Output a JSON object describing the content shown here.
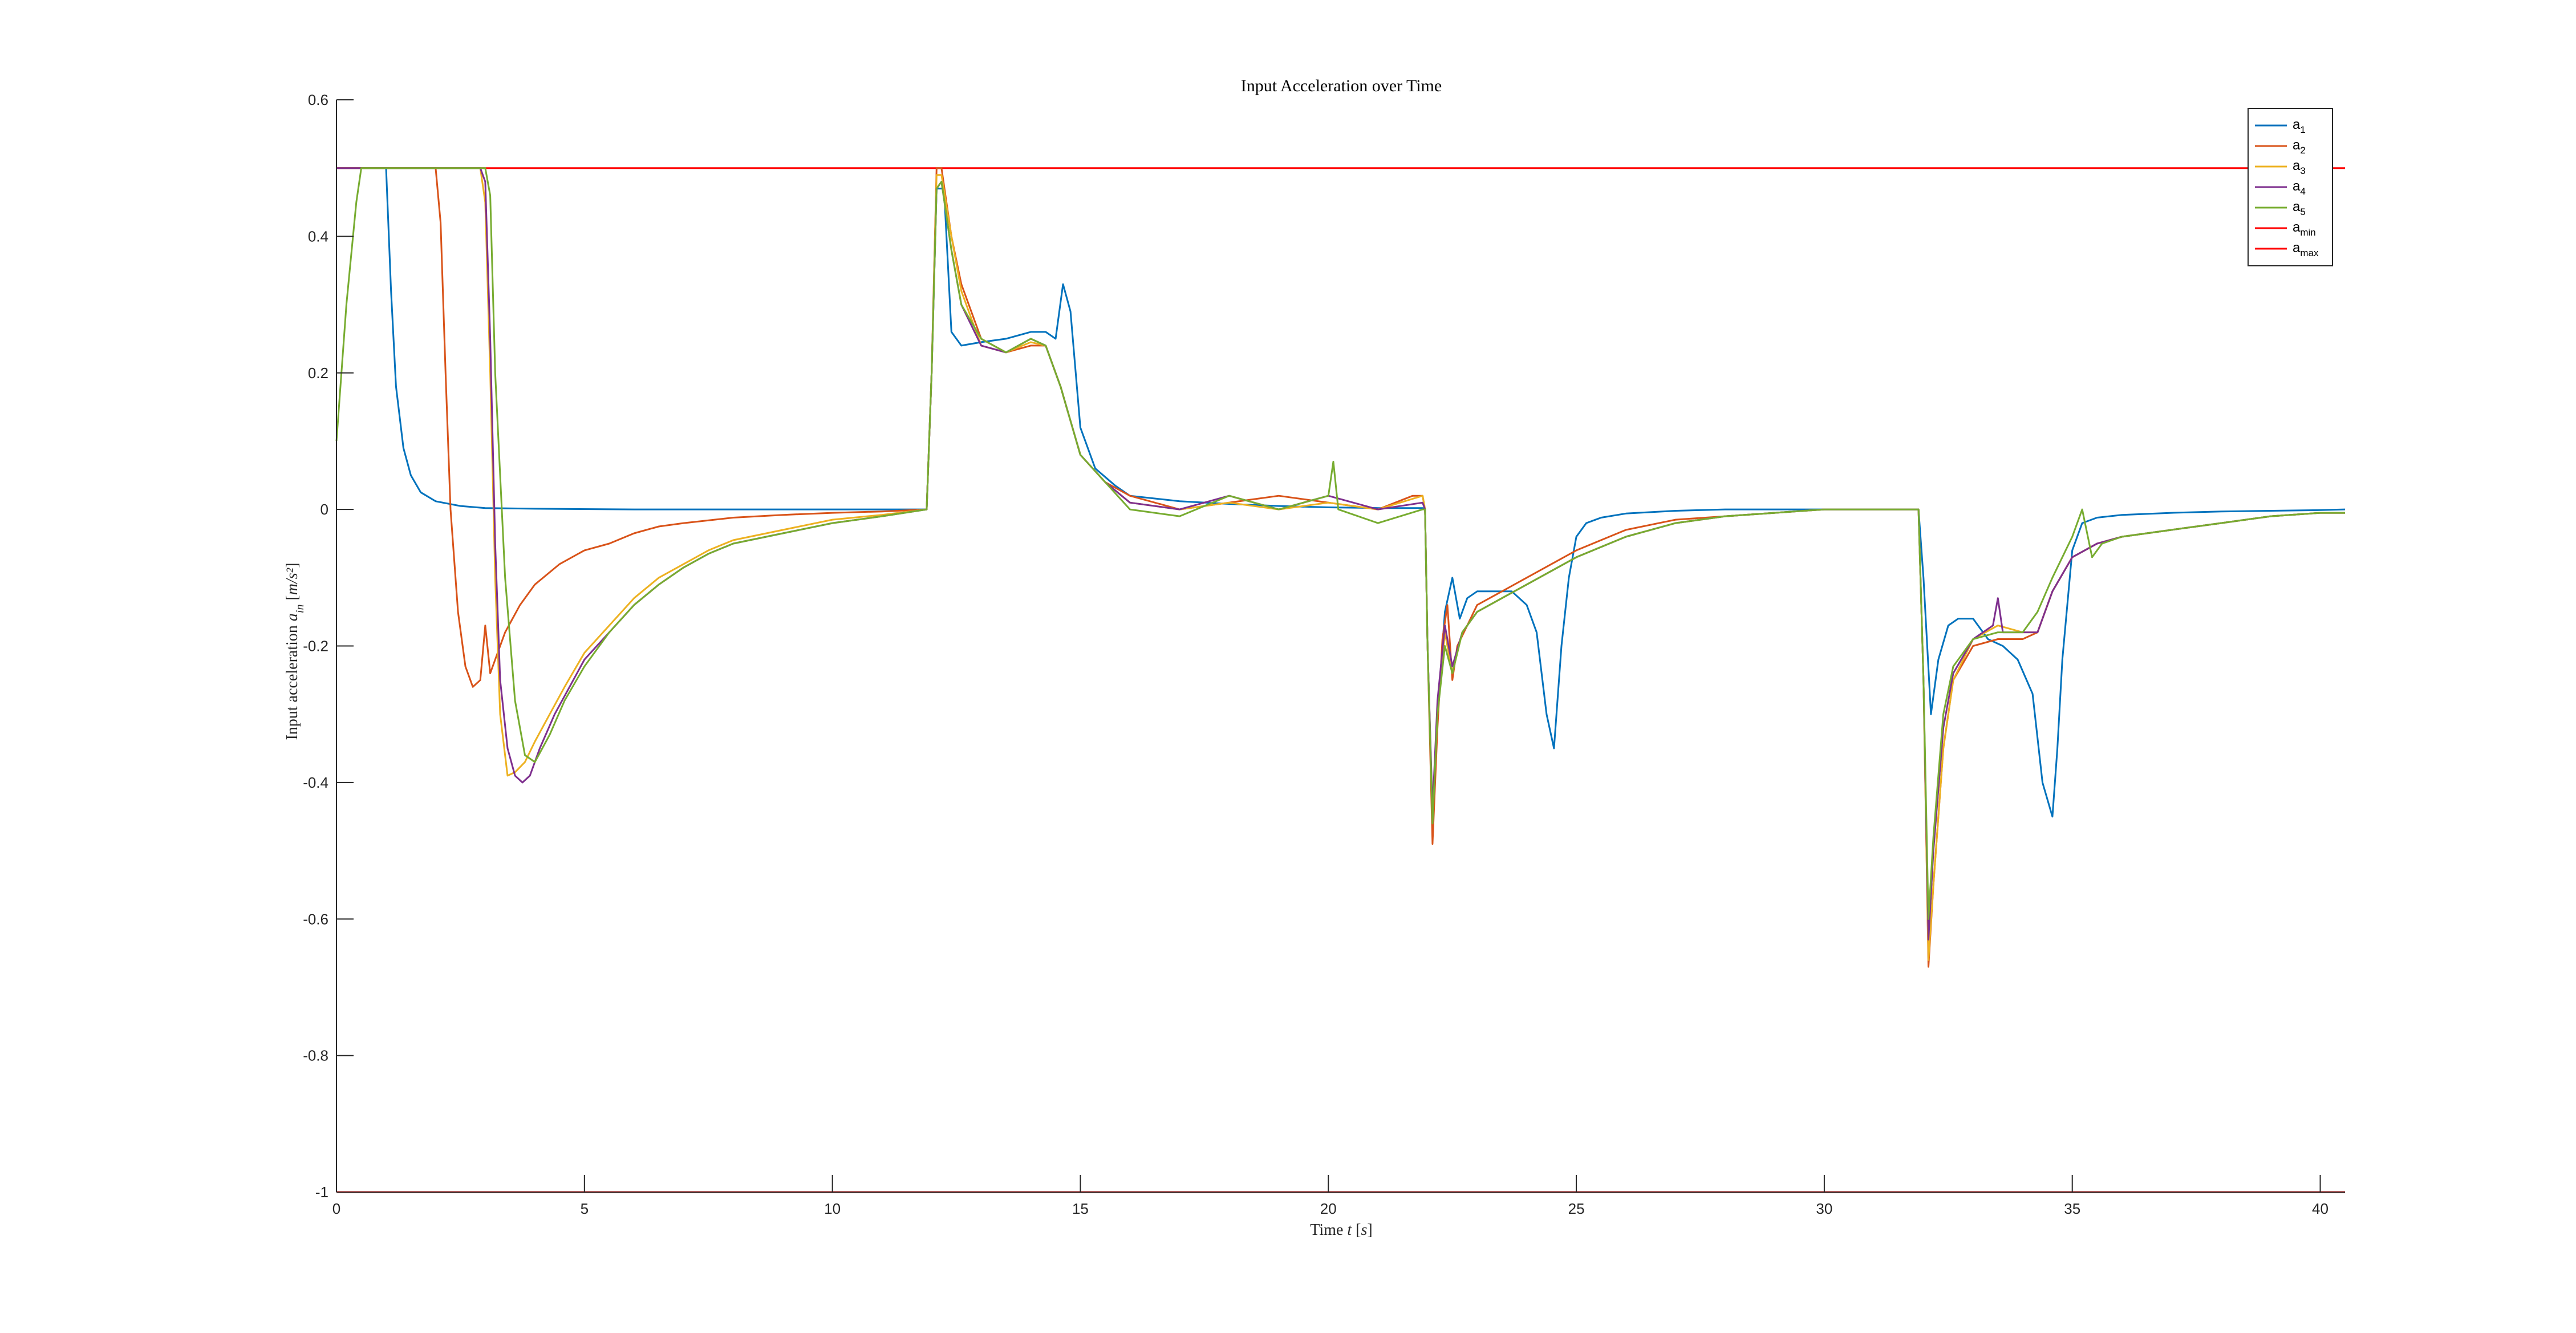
{
  "chart_data": {
    "type": "line",
    "title": "Input Acceleration over Time",
    "xlabel": "Time t [s]",
    "ylabel": "Input acceleration a_in [m/s²]",
    "xlim": [
      0,
      40.5
    ],
    "ylim": [
      -1,
      0.6
    ],
    "xticks": [
      0,
      5,
      10,
      15,
      20,
      25,
      30,
      35,
      40
    ],
    "yticks": [
      -1,
      -0.8,
      -0.6,
      -0.4,
      -0.2,
      0,
      0.2,
      0.4,
      0.6
    ],
    "xtick_labels": [
      "0",
      "5",
      "10",
      "15",
      "20",
      "25",
      "30",
      "35",
      "40"
    ],
    "ytick_labels": [
      "-1",
      "-0.8",
      "-0.6",
      "-0.4",
      "-0.2",
      "0",
      "0.2",
      "0.4",
      "0.6"
    ],
    "grid": false,
    "legend_position": "top-right",
    "series": [
      {
        "name": "a1",
        "color": "#0072BD",
        "x": [
          0,
          1.0,
          1.1,
          1.2,
          1.35,
          1.5,
          1.7,
          2.0,
          2.5,
          3,
          4,
          6,
          8,
          10,
          11.5,
          11.9,
          12.0,
          12.1,
          12.25,
          12.4,
          12.6,
          13,
          13.5,
          14,
          14.3,
          14.5,
          14.65,
          14.8,
          15.0,
          15.3,
          15.7,
          16,
          17,
          18,
          19,
          20,
          21,
          21.9,
          21.95,
          22.0,
          22.1,
          22.2,
          22.35,
          22.5,
          22.65,
          22.8,
          23,
          23.3,
          23.7,
          24,
          24.2,
          24.4,
          24.55,
          24.7,
          24.85,
          25.0,
          25.2,
          25.5,
          26,
          27,
          28,
          29,
          30,
          31,
          31.9,
          32.0,
          32.15,
          32.3,
          32.5,
          32.7,
          33,
          33.3,
          33.6,
          33.9,
          34.2,
          34.4,
          34.6,
          34.7,
          34.8,
          35.0,
          35.2,
          35.5,
          36,
          37,
          38,
          39,
          40,
          40.5
        ],
        "y": [
          0.5,
          0.5,
          0.32,
          0.18,
          0.09,
          0.05,
          0.025,
          0.012,
          0.005,
          0.002,
          0.001,
          0.0,
          0.0,
          0.0,
          0.0,
          0.0,
          0.2,
          0.47,
          0.47,
          0.26,
          0.24,
          0.245,
          0.25,
          0.26,
          0.26,
          0.25,
          0.33,
          0.29,
          0.12,
          0.06,
          0.035,
          0.02,
          0.012,
          0.008,
          0.005,
          0.003,
          0.002,
          0.002,
          0.0,
          -0.2,
          -0.45,
          -0.3,
          -0.15,
          -0.1,
          -0.16,
          -0.13,
          -0.12,
          -0.12,
          -0.12,
          -0.14,
          -0.18,
          -0.3,
          -0.35,
          -0.2,
          -0.1,
          -0.04,
          -0.02,
          -0.012,
          -0.006,
          -0.002,
          0.0,
          0.0,
          0.0,
          0.0,
          0.0,
          -0.1,
          -0.3,
          -0.22,
          -0.17,
          -0.16,
          -0.16,
          -0.19,
          -0.2,
          -0.22,
          -0.27,
          -0.4,
          -0.45,
          -0.35,
          -0.22,
          -0.06,
          -0.02,
          -0.012,
          -0.008,
          -0.005,
          -0.003,
          -0.002,
          -0.001,
          0.0
        ]
      },
      {
        "name": "a2",
        "color": "#D95319",
        "x": [
          0,
          2.0,
          2.1,
          2.2,
          2.3,
          2.45,
          2.6,
          2.75,
          2.9,
          3.0,
          3.1,
          3.2,
          3.4,
          3.7,
          4.0,
          4.5,
          5,
          5.5,
          6,
          6.5,
          7,
          8,
          9,
          10,
          11,
          11.9,
          12.0,
          12.1,
          12.2,
          12.4,
          12.6,
          13,
          13.5,
          14,
          14.3,
          14.6,
          15,
          15.5,
          16,
          17,
          18,
          19,
          20,
          21,
          21.7,
          21.9,
          21.95,
          22.0,
          22.1,
          22.2,
          22.3,
          22.4,
          22.5,
          22.6,
          22.8,
          23,
          23.5,
          24,
          25,
          26,
          27,
          28,
          29,
          30,
          31,
          31.9,
          32.0,
          32.1,
          32.2,
          32.4,
          32.6,
          33,
          33.5,
          34,
          34.3,
          34.6,
          35,
          35.5,
          36,
          37,
          38,
          39,
          40,
          40.5
        ],
        "y": [
          0.5,
          0.5,
          0.42,
          0.2,
          0.0,
          -0.15,
          -0.23,
          -0.26,
          -0.25,
          -0.17,
          -0.24,
          -0.22,
          -0.18,
          -0.14,
          -0.11,
          -0.08,
          -0.06,
          -0.05,
          -0.035,
          -0.025,
          -0.02,
          -0.012,
          -0.008,
          -0.005,
          -0.003,
          0.0,
          0.2,
          0.5,
          0.5,
          0.4,
          0.33,
          0.25,
          0.23,
          0.24,
          0.24,
          0.18,
          0.08,
          0.04,
          0.02,
          0.0,
          0.01,
          0.02,
          0.01,
          0.0,
          0.02,
          0.02,
          0.0,
          -0.2,
          -0.49,
          -0.32,
          -0.19,
          -0.14,
          -0.25,
          -0.2,
          -0.17,
          -0.14,
          -0.12,
          -0.1,
          -0.06,
          -0.03,
          -0.015,
          -0.01,
          -0.005,
          0.0,
          0.0,
          0.0,
          -0.25,
          -0.67,
          -0.55,
          -0.35,
          -0.25,
          -0.2,
          -0.19,
          -0.19,
          -0.18,
          -0.12,
          -0.07,
          -0.05,
          -0.04,
          -0.03,
          -0.02,
          -0.01,
          -0.005,
          -0.005
        ]
      },
      {
        "name": "a3",
        "color": "#EDB120",
        "x": [
          0,
          2.9,
          3.0,
          3.1,
          3.2,
          3.3,
          3.45,
          3.6,
          3.8,
          4.0,
          4.3,
          4.6,
          5,
          5.5,
          6,
          6.5,
          7,
          7.5,
          8,
          9,
          10,
          11,
          11.9,
          12.0,
          12.1,
          12.2,
          12.4,
          12.6,
          13,
          13.5,
          14,
          14.3,
          14.6,
          15,
          15.5,
          16,
          17,
          18,
          19,
          20,
          21,
          21.9,
          21.95,
          22.0,
          22.1,
          22.2,
          22.35,
          22.5,
          22.7,
          23,
          23.5,
          24,
          25,
          26,
          27,
          28,
          29,
          30,
          31,
          31.9,
          32.0,
          32.1,
          32.2,
          32.4,
          32.6,
          33,
          33.5,
          34,
          34.3,
          34.6,
          35,
          35.5,
          36,
          37,
          38,
          39,
          40,
          40.5
        ],
        "y": [
          0.5,
          0.5,
          0.45,
          0.2,
          -0.1,
          -0.3,
          -0.39,
          -0.385,
          -0.37,
          -0.34,
          -0.3,
          -0.26,
          -0.21,
          -0.17,
          -0.13,
          -0.1,
          -0.08,
          -0.06,
          -0.045,
          -0.03,
          -0.015,
          -0.008,
          0.0,
          0.2,
          0.49,
          0.49,
          0.4,
          0.32,
          0.24,
          0.23,
          0.245,
          0.24,
          0.18,
          0.08,
          0.04,
          0.01,
          0.0,
          0.01,
          0.0,
          0.01,
          0.0,
          0.02,
          0.0,
          -0.2,
          -0.45,
          -0.3,
          -0.18,
          -0.24,
          -0.18,
          -0.15,
          -0.13,
          -0.11,
          -0.07,
          -0.04,
          -0.02,
          -0.01,
          -0.005,
          0.0,
          0.0,
          0.0,
          -0.25,
          -0.66,
          -0.55,
          -0.35,
          -0.25,
          -0.19,
          -0.17,
          -0.18,
          -0.18,
          -0.12,
          -0.07,
          -0.05,
          -0.04,
          -0.03,
          -0.02,
          -0.01,
          -0.005,
          -0.005
        ]
      },
      {
        "name": "a4",
        "color": "#7E2F8E",
        "x": [
          0,
          2.9,
          3.0,
          3.1,
          3.2,
          3.3,
          3.45,
          3.6,
          3.75,
          3.9,
          4.1,
          4.4,
          4.7,
          5,
          5.5,
          6,
          6.5,
          7,
          7.5,
          8,
          9,
          10,
          11,
          11.9,
          12.0,
          12.1,
          12.2,
          12.4,
          12.6,
          13,
          13.5,
          14,
          14.3,
          14.6,
          15,
          15.5,
          16,
          17,
          18,
          19,
          20,
          21,
          21.9,
          21.95,
          22.0,
          22.1,
          22.2,
          22.35,
          22.5,
          22.7,
          23,
          23.5,
          24,
          25,
          26,
          27,
          28,
          29,
          30,
          31,
          31.9,
          32.0,
          32.1,
          32.2,
          32.4,
          32.6,
          33,
          33.4,
          33.5,
          33.6,
          34,
          34.3,
          34.6,
          35,
          35.5,
          36,
          37,
          38,
          39,
          40,
          40.5
        ],
        "y": [
          0.5,
          0.5,
          0.48,
          0.25,
          -0.05,
          -0.25,
          -0.35,
          -0.39,
          -0.4,
          -0.39,
          -0.35,
          -0.3,
          -0.26,
          -0.22,
          -0.18,
          -0.14,
          -0.11,
          -0.085,
          -0.065,
          -0.05,
          -0.035,
          -0.02,
          -0.01,
          0.0,
          0.2,
          0.47,
          0.48,
          0.38,
          0.3,
          0.24,
          0.23,
          0.25,
          0.24,
          0.18,
          0.08,
          0.04,
          0.01,
          0.0,
          0.02,
          0.0,
          0.02,
          0.0,
          0.01,
          0.0,
          -0.2,
          -0.44,
          -0.28,
          -0.17,
          -0.23,
          -0.18,
          -0.15,
          -0.13,
          -0.11,
          -0.07,
          -0.04,
          -0.02,
          -0.01,
          -0.005,
          0.0,
          0.0,
          0.0,
          -0.25,
          -0.63,
          -0.5,
          -0.32,
          -0.24,
          -0.19,
          -0.17,
          -0.13,
          -0.18,
          -0.18,
          -0.18,
          -0.12,
          -0.07,
          -0.05,
          -0.04,
          -0.03,
          -0.02,
          -0.01,
          -0.005,
          -0.005
        ]
      },
      {
        "name": "a5",
        "color": "#77AC30",
        "x": [
          0,
          0.2,
          0.4,
          0.5,
          3.0,
          3.1,
          3.2,
          3.4,
          3.6,
          3.8,
          4.0,
          4.3,
          4.6,
          5,
          5.5,
          6,
          6.5,
          7,
          7.5,
          8,
          9,
          10,
          11,
          11.9,
          12.0,
          12.1,
          12.2,
          12.4,
          12.6,
          13,
          13.5,
          14,
          14.3,
          14.6,
          15,
          15.5,
          16,
          17,
          18,
          19,
          20,
          20.1,
          20.2,
          21,
          21.9,
          21.95,
          22.0,
          22.1,
          22.2,
          22.35,
          22.5,
          22.7,
          23,
          23.5,
          24,
          25,
          26,
          27,
          28,
          29,
          30,
          31,
          31.9,
          32.0,
          32.1,
          32.2,
          32.4,
          32.6,
          33,
          33.5,
          34,
          34.3,
          34.6,
          35,
          35.2,
          35.4,
          35.6,
          36,
          37,
          38,
          39,
          40,
          40.5
        ],
        "y": [
          0.1,
          0.3,
          0.45,
          0.5,
          0.5,
          0.46,
          0.2,
          -0.1,
          -0.28,
          -0.36,
          -0.37,
          -0.33,
          -0.28,
          -0.23,
          -0.18,
          -0.14,
          -0.11,
          -0.085,
          -0.065,
          -0.05,
          -0.035,
          -0.02,
          -0.01,
          0.0,
          0.2,
          0.47,
          0.48,
          0.38,
          0.3,
          0.25,
          0.23,
          0.25,
          0.24,
          0.18,
          0.08,
          0.04,
          0.0,
          -0.01,
          0.02,
          0.0,
          0.02,
          0.07,
          0.0,
          -0.02,
          0.0,
          0.0,
          -0.2,
          -0.46,
          -0.3,
          -0.2,
          -0.24,
          -0.18,
          -0.15,
          -0.13,
          -0.11,
          -0.07,
          -0.04,
          -0.02,
          -0.01,
          -0.005,
          0.0,
          0.0,
          0.0,
          -0.25,
          -0.6,
          -0.48,
          -0.3,
          -0.23,
          -0.19,
          -0.18,
          -0.18,
          -0.15,
          -0.1,
          -0.04,
          0.0,
          -0.07,
          -0.05,
          -0.04,
          -0.03,
          -0.02,
          -0.01,
          -0.005,
          -0.005
        ]
      }
    ],
    "limits": [
      {
        "name": "a_min",
        "color": "#FF0000",
        "value": -1
      },
      {
        "name": "a_max",
        "color": "#FF0000",
        "value": 0.5
      }
    ],
    "legend": [
      {
        "base": "a",
        "sub": "1",
        "color": "#0072BD"
      },
      {
        "base": "a",
        "sub": "2",
        "color": "#D95319"
      },
      {
        "base": "a",
        "sub": "3",
        "color": "#EDB120"
      },
      {
        "base": "a",
        "sub": "4",
        "color": "#7E2F8E"
      },
      {
        "base": "a",
        "sub": "5",
        "color": "#77AC30"
      },
      {
        "base": "a",
        "sub": "min",
        "color": "#FF0000"
      },
      {
        "base": "a",
        "sub": "max",
        "color": "#FF0000"
      }
    ]
  }
}
